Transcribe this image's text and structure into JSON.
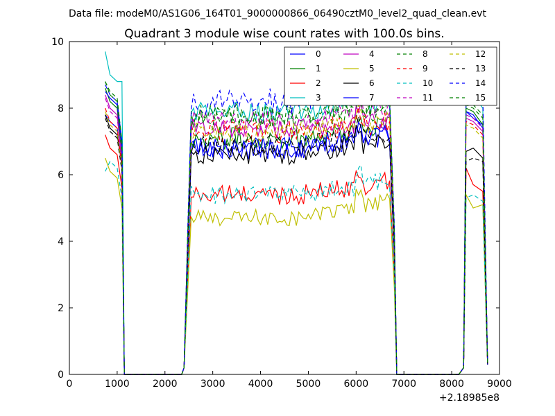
{
  "figure": {
    "suptitle": "Data file: modeM0/AS1G06_164T01_9000000866_06490cztM0_level2_quad_clean.evt"
  },
  "chart_data": {
    "type": "line",
    "title": "Quadrant 3 module wise count rates with 100.0s bins.",
    "xlabel": "",
    "ylabel": "",
    "x_offset_label": "+2.18985e8",
    "xlim": [
      0,
      9000
    ],
    "ylim": [
      0,
      10
    ],
    "x_ticks": [
      0,
      1000,
      2000,
      3000,
      4000,
      5000,
      6000,
      7000,
      8000,
      9000
    ],
    "y_ticks": [
      0,
      2,
      4,
      6,
      8,
      10
    ],
    "grid": false,
    "legend_position": "top-right",
    "legend_columns": 4,
    "segments": [
      [
        750,
        1150
      ],
      [
        2400,
        6850
      ],
      [
        8150,
        8750
      ]
    ],
    "series": [
      {
        "name": "0",
        "color": "#0000ff",
        "dash": "solid",
        "seg1": [
          7.8,
          7.6,
          6.2,
          3.8
        ],
        "plateau": 6.8,
        "end": 7.2,
        "var": 0.35,
        "seg3": [
          0.2,
          7.9,
          7.8,
          7.4,
          0.3
        ]
      },
      {
        "name": "1",
        "color": "#008000",
        "dash": "solid",
        "seg1": [
          8.6,
          8.2,
          6.5,
          3.9
        ],
        "plateau": 7.1,
        "end": 7.5,
        "var": 0.35,
        "seg3": [
          0.2,
          8.0,
          7.9,
          7.5,
          0.3
        ]
      },
      {
        "name": "2",
        "color": "#ff0000",
        "dash": "solid",
        "seg1": [
          7.2,
          6.8,
          5.6,
          3.5
        ],
        "plateau": 5.4,
        "end": 5.8,
        "var": 0.3,
        "seg3": [
          0.2,
          6.2,
          5.7,
          5.5,
          0.3
        ]
      },
      {
        "name": "3",
        "color": "#00bfbf",
        "dash": "solid",
        "seg1": [
          9.7,
          9.0,
          8.8,
          4.2
        ],
        "plateau": 7.9,
        "end": 8.2,
        "var": 0.3,
        "seg3": [
          0.2,
          8.2,
          8.4,
          8.0,
          0.3
        ]
      },
      {
        "name": "4",
        "color": "#bf00bf",
        "dash": "solid",
        "seg1": [
          8.4,
          8.0,
          6.3,
          4.0
        ],
        "plateau": 7.4,
        "end": 7.6,
        "var": 0.3,
        "seg3": [
          0.2,
          7.7,
          7.6,
          7.3,
          0.3
        ]
      },
      {
        "name": "5",
        "color": "#bfbf00",
        "dash": "solid",
        "seg1": [
          6.5,
          6.1,
          5.0,
          4.2
        ],
        "plateau": 4.7,
        "end": 5.2,
        "var": 0.25,
        "seg3": [
          0.2,
          5.4,
          5.0,
          5.1,
          0.3
        ]
      },
      {
        "name": "6",
        "color": "#000000",
        "dash": "solid",
        "seg1": [
          7.8,
          7.4,
          6.3,
          3.9
        ],
        "plateau": 6.6,
        "end": 7.0,
        "var": 0.3,
        "seg3": [
          0.2,
          6.7,
          6.8,
          6.5,
          0.3
        ]
      },
      {
        "name": "7",
        "color": "#0000ff",
        "dash": "solid",
        "seg1": [
          8.5,
          8.3,
          6.8,
          4.1
        ],
        "plateau": 6.8,
        "end": 7.3,
        "var": 0.35,
        "seg3": [
          0.2,
          7.9,
          7.7,
          7.5,
          0.3
        ]
      },
      {
        "name": "8",
        "color": "#008000",
        "dash": "dashed",
        "seg1": [
          8.8,
          8.5,
          7.0,
          4.3
        ],
        "plateau": 7.7,
        "end": 8.0,
        "var": 0.35,
        "seg3": [
          0.2,
          8.3,
          8.1,
          7.8,
          0.3
        ]
      },
      {
        "name": "9",
        "color": "#ff0000",
        "dash": "dashed",
        "seg1": [
          8.0,
          7.6,
          6.2,
          3.8
        ],
        "plateau": 7.3,
        "end": 7.6,
        "var": 0.35,
        "seg3": [
          0.2,
          7.6,
          7.5,
          7.2,
          0.3
        ]
      },
      {
        "name": "10",
        "color": "#00bfbf",
        "dash": "dashed",
        "seg1": [
          6.1,
          6.4,
          5.3,
          4.0
        ],
        "plateau": 5.4,
        "end": 5.8,
        "var": 0.3,
        "seg3": [
          0.2,
          5.3,
          5.4,
          5.2,
          0.3
        ]
      },
      {
        "name": "11",
        "color": "#bf00bf",
        "dash": "dashed",
        "seg1": [
          8.3,
          7.9,
          6.5,
          4.0
        ],
        "plateau": 7.6,
        "end": 7.9,
        "var": 0.35,
        "seg3": [
          0.2,
          7.8,
          7.7,
          7.4,
          0.3
        ]
      },
      {
        "name": "12",
        "color": "#bfbf00",
        "dash": "dashed",
        "seg1": [
          7.9,
          7.5,
          6.2,
          3.9
        ],
        "plateau": 7.3,
        "end": 7.6,
        "var": 0.3,
        "seg3": [
          0.2,
          7.5,
          7.4,
          7.1,
          0.3
        ]
      },
      {
        "name": "13",
        "color": "#000000",
        "dash": "dashed",
        "seg1": [
          7.7,
          7.3,
          6.1,
          3.8
        ],
        "plateau": 6.9,
        "end": 7.2,
        "var": 0.3,
        "seg3": [
          0.2,
          6.4,
          6.5,
          6.4,
          0.3
        ]
      },
      {
        "name": "14",
        "color": "#0000ff",
        "dash": "dashed",
        "seg1": [
          8.7,
          8.4,
          7.0,
          4.2
        ],
        "plateau": 8.2,
        "end": 8.6,
        "var": 0.4,
        "seg3": [
          0.2,
          8.4,
          8.3,
          8.5,
          0.3
        ]
      },
      {
        "name": "15",
        "color": "#008000",
        "dash": "dashed",
        "seg1": [
          8.8,
          8.4,
          6.9,
          4.2
        ],
        "plateau": 7.8,
        "end": 8.2,
        "var": 0.35,
        "seg3": [
          0.2,
          8.1,
          8.0,
          7.7,
          0.3
        ]
      }
    ]
  }
}
